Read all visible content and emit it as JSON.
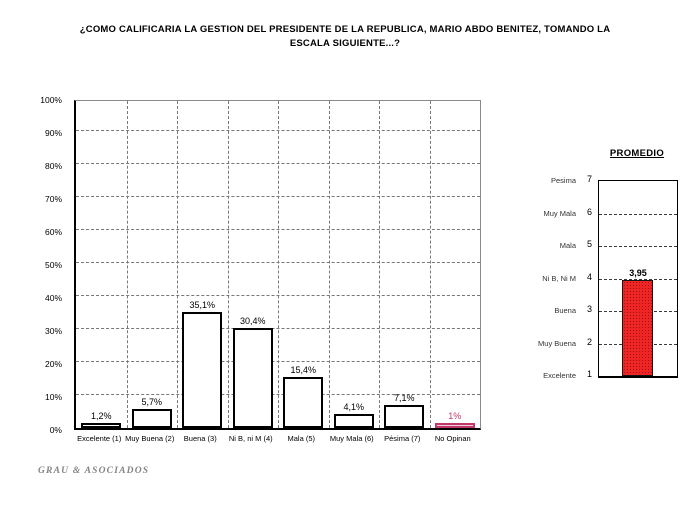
{
  "title": {
    "line1": "¿COMO CALIFICARIA LA GESTION DEL PRESIDENTE DE LA REPUBLICA, MARIO ABDO BENITEZ, TOMANDO LA",
    "line2": "ESCALA SIGUIENTE...?"
  },
  "footer": {
    "brand": "GRAU & ASOCIADOS"
  },
  "colors": {
    "grid": "#787878",
    "bar_fill": "#ffffff",
    "bar_border": "#000000",
    "highlight_fill": "#f4cdda",
    "highlight_border": "#c2376b",
    "highlight_text": "#c2376b",
    "promedio_fill": "#ee2525",
    "promedio_dot": "#a80f0f"
  },
  "chart_data": [
    {
      "type": "bar",
      "title": "",
      "categories": [
        "Excelente (1)",
        "Muy Buena (2)",
        "Buena (3)",
        "Ni B, ni M (4)",
        "Mala (5)",
        "Muy Mala (6)",
        "Pésima (7)",
        "No Opinan"
      ],
      "values": [
        1.2,
        5.7,
        35.1,
        30.4,
        15.4,
        4.1,
        7.1,
        1
      ],
      "value_labels": [
        "1,2%",
        "5,7%",
        "35,1%",
        "30,4%",
        "15,4%",
        "4,1%",
        "7,1%",
        "1%"
      ],
      "ylim": [
        0,
        100
      ],
      "ytick_labels": [
        "0%",
        "10%",
        "20%",
        "30%",
        "40%",
        "50%",
        "60%",
        "70%",
        "80%",
        "90%",
        "100%"
      ],
      "grid": true,
      "legend": "none",
      "highlight_category": "No Opinan"
    },
    {
      "type": "bar",
      "title": "PROMEDIO",
      "value": 3.95,
      "value_label": "3,95",
      "ylim": [
        1,
        7
      ],
      "grid": true,
      "scale": [
        {
          "label": "Pesima",
          "tick": 7
        },
        {
          "label": "Muy Mala",
          "tick": 6
        },
        {
          "label": "Mala",
          "tick": 5
        },
        {
          "label": "Ni B, Ni M",
          "tick": 4
        },
        {
          "label": "Buena",
          "tick": 3
        },
        {
          "label": "Muy Buena",
          "tick": 2
        },
        {
          "label": "Excelente",
          "tick": 1
        }
      ]
    }
  ]
}
